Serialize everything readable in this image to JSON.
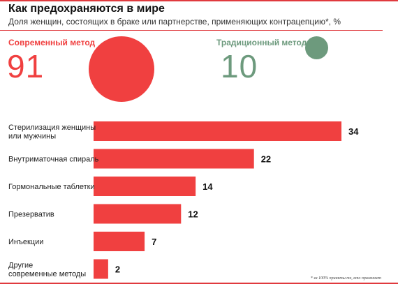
{
  "header": {
    "title": "Как предохраняются в мире",
    "subtitle": "Доля женщин, состоящих в браке или партнерстве, применяющих контрацепцию*, %"
  },
  "summary": {
    "modern": {
      "label": "Современный метод",
      "value": "91",
      "color": "#f04040"
    },
    "traditional": {
      "label": "Традиционный метод",
      "value": "10",
      "color": "#6d9a7d"
    }
  },
  "chart_data": {
    "type": "bar",
    "orientation": "horizontal",
    "categories": [
      [
        "Стерилизация женщины",
        "или мужчины"
      ],
      [
        "Внутриматочная спираль"
      ],
      [
        "Гормональные таблетки"
      ],
      [
        "Презерватив"
      ],
      [
        "Инъекции"
      ],
      [
        "Другие",
        "современные методы"
      ]
    ],
    "values": [
      34,
      22,
      14,
      12,
      7,
      2
    ],
    "bar_color": "#f04040",
    "xlim": [
      0,
      34
    ]
  },
  "footnote": "* за 100% приняты те, кто применяет"
}
